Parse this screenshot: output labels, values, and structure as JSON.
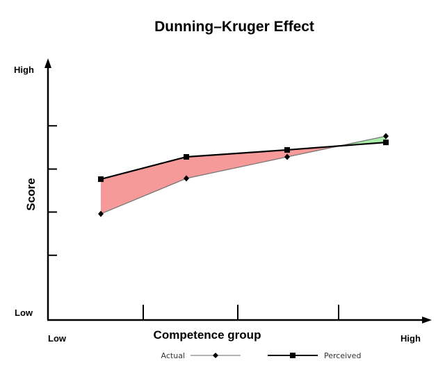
{
  "chart_data": {
    "type": "line",
    "title": "Dunning–Kruger Effect",
    "xlabel": "Competence group",
    "ylabel": "Score",
    "x_low_label": "Low",
    "x_high_label": "High",
    "y_low_label": "Low",
    "y_high_label": "High",
    "x": [
      1,
      2,
      3,
      4
    ],
    "xlim": [
      0.5,
      4.5
    ],
    "ylim": [
      0,
      100
    ],
    "yticks": [
      25,
      41.7,
      58.3,
      75
    ],
    "series": [
      {
        "name": "Actual",
        "values": [
          41,
          54.7,
          63,
          71
        ],
        "color": "#888888",
        "marker": "diamond"
      },
      {
        "name": "Perceived",
        "values": [
          54.4,
          63,
          65.7,
          68.6
        ],
        "color": "#000000",
        "marker": "square"
      }
    ],
    "fill_overestimate_color": "#f59a98",
    "fill_underestimate_color": "#a8eea8",
    "grid": false,
    "legend": "bottom"
  }
}
